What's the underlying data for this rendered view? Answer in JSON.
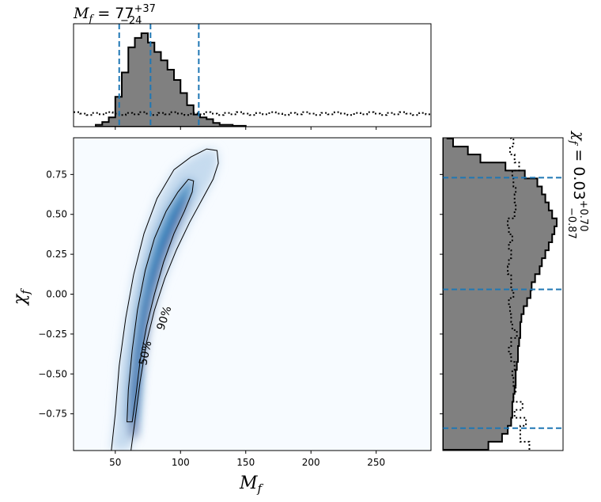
{
  "chart_data": {
    "type": "corner",
    "xlabel": "M_f",
    "ylabel": "χ_f",
    "title_x": {
      "symbol": "M",
      "subscript": "f",
      "equals": " = ",
      "value": "77",
      "plus": "+37",
      "minus": "−24"
    },
    "title_y": {
      "symbol": "χ",
      "subscript": "f",
      "equals": " = ",
      "value": "0.03",
      "plus": "+0.70",
      "minus": "−0.87"
    },
    "xlim": [
      18,
      292
    ],
    "ylim": [
      -0.98,
      0.98
    ],
    "xticks": [
      50,
      100,
      150,
      200,
      250
    ],
    "yticks": [
      -0.75,
      -0.5,
      -0.25,
      0.0,
      0.25,
      0.5,
      0.75
    ],
    "xtick_labels": [
      "50",
      "100",
      "150",
      "200",
      "250"
    ],
    "ytick_labels": [
      "−0.75",
      "−0.50",
      "−0.25",
      "0.00",
      "0.25",
      "0.50",
      "0.75"
    ],
    "contour_labels": [
      "50%",
      "90%"
    ],
    "quantiles_x": [
      53,
      77,
      114
    ],
    "quantiles_y": [
      -0.84,
      0.03,
      0.73
    ],
    "colormap": [
      "#f7fbff",
      "#08306b"
    ],
    "hist_fill": "#808080",
    "quantile_color": "#1f77b4",
    "marginal_x_posterior": {
      "bin_width": 5,
      "bin_starts": [
        35,
        40,
        45,
        50,
        55,
        60,
        65,
        70,
        75,
        80,
        85,
        90,
        95,
        100,
        105,
        110,
        115,
        120,
        125,
        130,
        135,
        140,
        145
      ],
      "values": [
        2,
        5,
        10,
        32,
        58,
        85,
        95,
        100,
        90,
        80,
        71,
        61,
        50,
        36,
        23,
        13,
        10,
        8,
        4,
        2,
        2,
        1,
        1
      ]
    },
    "marginal_x_prior": {
      "level": 14
    },
    "marginal_y_posterior": {
      "bin_width": 0.05,
      "bin_starts": [
        -0.975,
        -0.925,
        -0.875,
        -0.825,
        -0.775,
        -0.725,
        -0.675,
        -0.625,
        -0.575,
        -0.525,
        -0.475,
        -0.425,
        -0.375,
        -0.325,
        -0.275,
        -0.225,
        -0.175,
        -0.125,
        -0.075,
        -0.025,
        0.025,
        0.075,
        0.125,
        0.175,
        0.225,
        0.275,
        0.325,
        0.375,
        0.425,
        0.475,
        0.525,
        0.575,
        0.625,
        0.675,
        0.725,
        0.775,
        0.825,
        0.875,
        0.925,
        0.975
      ],
      "values": [
        40,
        52,
        57,
        60,
        61,
        61,
        62,
        63,
        64,
        64,
        65,
        66,
        66,
        67,
        68,
        68,
        69,
        71,
        74,
        77,
        78,
        81,
        85,
        87,
        90,
        93,
        96,
        98,
        100,
        96,
        93,
        90,
        87,
        83,
        72,
        55,
        33,
        22,
        9,
        4
      ]
    },
    "marginal_y_prior": {
      "values": [
        76,
        68,
        68,
        73,
        63,
        70,
        62,
        64,
        62,
        61,
        63,
        60,
        58,
        60,
        65,
        61,
        60,
        59,
        58,
        62,
        60,
        60,
        57,
        58,
        60,
        58,
        61,
        58,
        57,
        63,
        64,
        63,
        64,
        62,
        61,
        67,
        63,
        59,
        62,
        60
      ]
    }
  }
}
